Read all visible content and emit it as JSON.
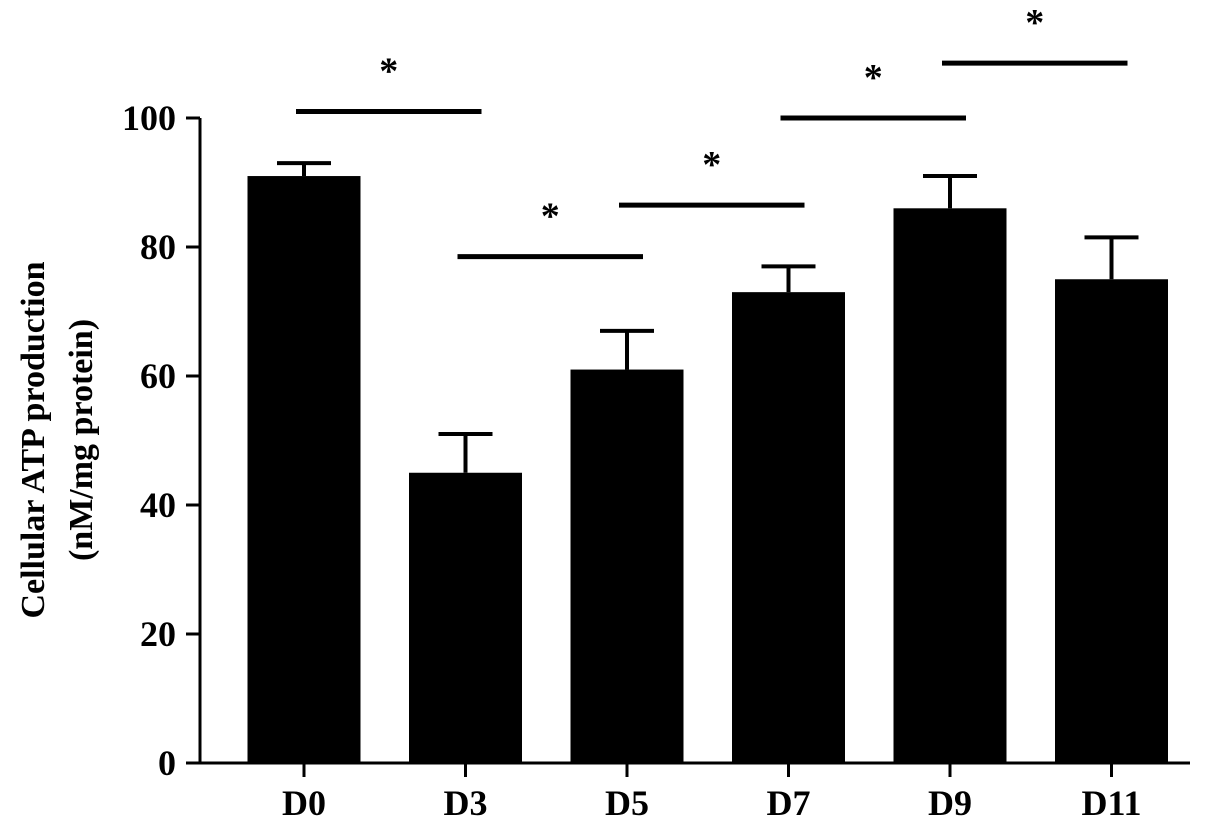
{
  "chart_data": {
    "type": "bar",
    "title": "",
    "xlabel": "",
    "ylabel": [
      "Cellular ATP production",
      "(nM/mg protein)"
    ],
    "categories": [
      "D0",
      "D3",
      "D5",
      "D7",
      "D9",
      "D11"
    ],
    "values": [
      91,
      45,
      61,
      73,
      86,
      75
    ],
    "error_upper": [
      2,
      6,
      6,
      4,
      5,
      6.5
    ],
    "ylim": [
      0,
      100
    ],
    "yticks": [
      "0",
      "20",
      "40",
      "60",
      "80",
      "100"
    ],
    "grid": false,
    "legend": "none",
    "bar_color": "#000000",
    "significance": [
      {
        "from": "D0",
        "to": "D3",
        "y": 101,
        "label": "*"
      },
      {
        "from": "D3",
        "to": "D5",
        "y": 78.5,
        "label": "*"
      },
      {
        "from": "D5",
        "to": "D7",
        "y": 86.5,
        "label": "*"
      },
      {
        "from": "D7",
        "to": "D9",
        "y": 100,
        "label": "*"
      },
      {
        "from": "D9",
        "to": "D11",
        "y": 108.5,
        "label": "*"
      }
    ]
  }
}
